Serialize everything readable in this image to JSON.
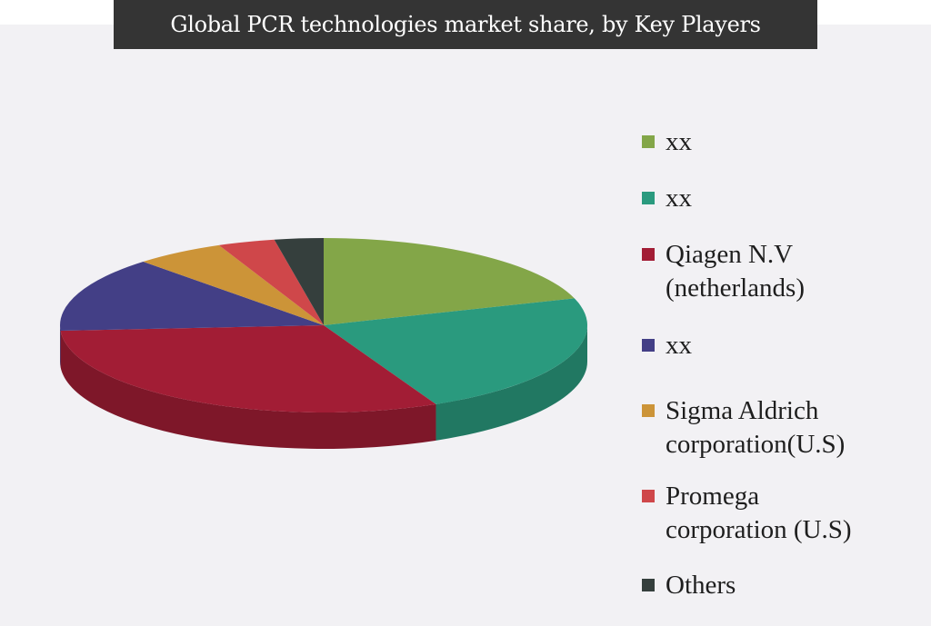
{
  "chart_data": {
    "type": "pie",
    "style": "3d",
    "title": "Global PCR technologies market share, by Key Players",
    "legend_position": "right",
    "slices": [
      {
        "label": "xx",
        "value": 20,
        "color": "#83a648"
      },
      {
        "label": "xx",
        "value": 23,
        "color": "#2a9a7e"
      },
      {
        "label": "Qiagen N.V\n(netherlands)",
        "value": 31,
        "color": "#a21d35"
      },
      {
        "label": "xx",
        "value": 14,
        "color": "#433f86"
      },
      {
        "label": "Sigma Aldrich\ncorporation(U.S)",
        "value": 5.5,
        "color": "#cc9438"
      },
      {
        "label": "Promega\ncorporation (U.S)",
        "value": 3.5,
        "color": "#cf474a"
      },
      {
        "label": "Others",
        "value": 3,
        "color": "#353f3d"
      }
    ]
  }
}
